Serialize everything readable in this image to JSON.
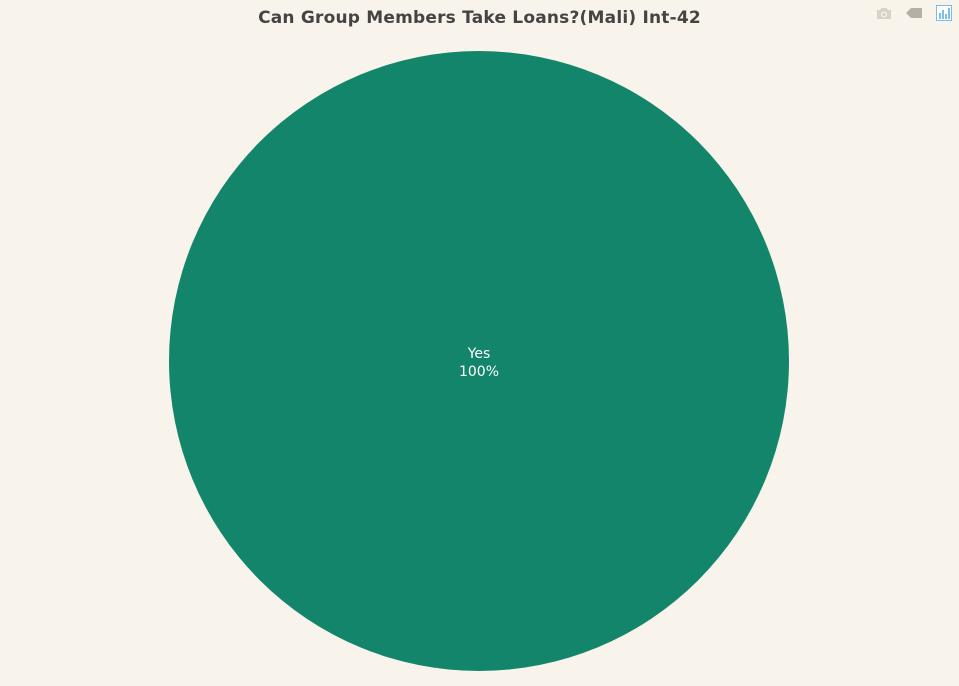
{
  "title": "Can Group Members Take Loans?(Mali) Int-42",
  "modebar": {
    "icons": [
      "camera-icon",
      "tag-icon",
      "bar-chart-icon"
    ],
    "colors": {
      "camera": "#d8d3c8",
      "tag": "#b5b0a6",
      "logo": "#7dbbe8"
    }
  },
  "chart_data": {
    "type": "pie",
    "title": "Can Group Members Take Loans?(Mali) Int-42",
    "slices": [
      {
        "label": "Yes",
        "value": 100,
        "percent_label": "100%",
        "color": "#13856a"
      }
    ]
  }
}
